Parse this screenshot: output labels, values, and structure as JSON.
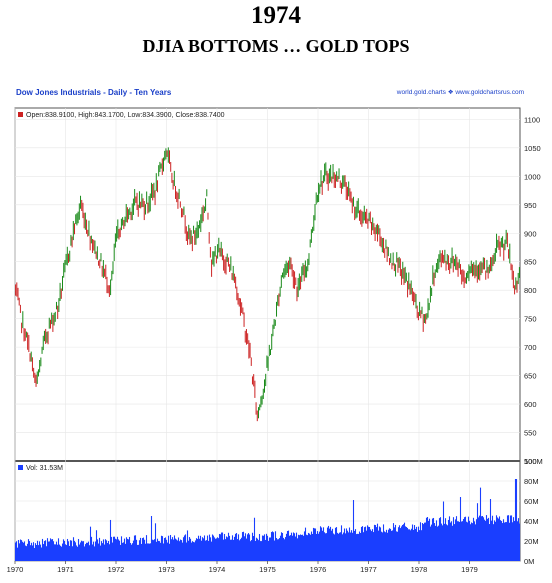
{
  "header": {
    "title": "1974",
    "subtitle": "DJIA BOTTOMS … GOLD TOPS",
    "chart_title": "Dow Jones Industrials - Daily - Ten Years",
    "source": "world.gold.charts ❖ www.goldchartsrus.com"
  },
  "chart_data": [
    {
      "type": "line",
      "legend": "Open:838.9100, High:843.1700, Low:834.3900, Close:838.7400",
      "x_tick_labels": [
        "1970",
        "1971",
        "1972",
        "1973",
        "1974",
        "1975",
        "1976",
        "1977",
        "1978",
        "1979"
      ],
      "y_tick_labels": [
        "1100",
        "1050",
        "1000",
        "950",
        "900",
        "850",
        "800",
        "750",
        "700",
        "650",
        "600",
        "550",
        "500"
      ],
      "ylim": [
        500,
        1120
      ],
      "xlim": [
        1970.0,
        1980.0
      ],
      "colors": {
        "up": "#1a8a1a",
        "down": "#cc2222"
      },
      "x": [
        1970.0,
        1970.15,
        1970.3,
        1970.42,
        1970.6,
        1970.85,
        1971.0,
        1971.15,
        1971.3,
        1971.45,
        1971.6,
        1971.9,
        1972.0,
        1972.2,
        1972.4,
        1972.6,
        1972.8,
        1973.0,
        1973.1,
        1973.3,
        1973.45,
        1973.6,
        1973.8,
        1973.9,
        1974.0,
        1974.2,
        1974.35,
        1974.5,
        1974.65,
        1974.8,
        1974.95,
        1975.1,
        1975.3,
        1975.45,
        1975.6,
        1975.8,
        1976.0,
        1976.15,
        1976.3,
        1976.5,
        1976.7,
        1976.85,
        1977.0,
        1977.2,
        1977.4,
        1977.6,
        1977.8,
        1978.0,
        1978.15,
        1978.3,
        1978.45,
        1978.6,
        1978.75,
        1978.9,
        1979.0,
        1979.2,
        1979.4,
        1979.55,
        1979.75,
        1979.9,
        1980.0
      ],
      "y": [
        805,
        740,
        690,
        630,
        720,
        770,
        840,
        900,
        950,
        905,
        870,
        800,
        890,
        930,
        955,
        950,
        980,
        1050,
        1000,
        950,
        890,
        900,
        960,
        840,
        870,
        850,
        820,
        760,
        690,
        580,
        640,
        720,
        830,
        850,
        800,
        850,
        980,
        1000,
        1000,
        990,
        950,
        930,
        920,
        900,
        860,
        840,
        810,
        760,
        750,
        830,
        860,
        850,
        850,
        820,
        840,
        840,
        830,
        875,
        880,
        800,
        840
      ]
    },
    {
      "type": "bar",
      "legend": "Vol: 31.53M",
      "y_tick_labels": [
        "100M",
        "80M",
        "60M",
        "40M",
        "20M",
        "0M"
      ],
      "ylim": [
        0,
        100
      ],
      "color": "#1a3fff"
    }
  ]
}
